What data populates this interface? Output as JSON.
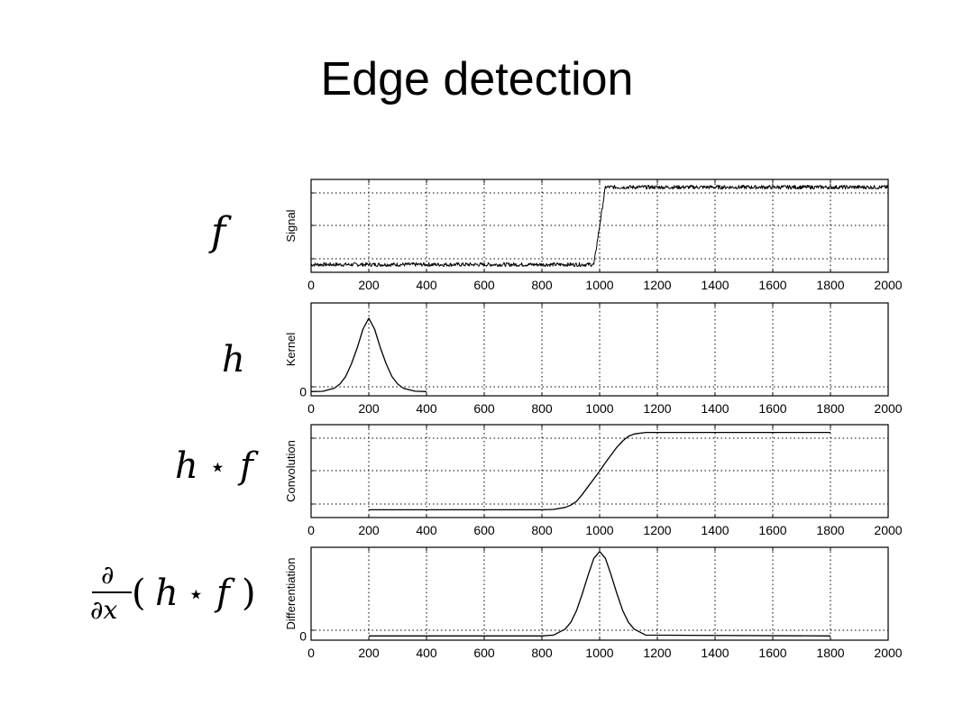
{
  "title": "Edge detection",
  "math_labels": {
    "signal": "f",
    "kernel": "h",
    "conv_h": "h",
    "conv_star": "⋆",
    "conv_f": "f",
    "deriv_partial_top": "∂",
    "deriv_partial_bottom": "∂x",
    "deriv_open": "(",
    "deriv_h": "h",
    "deriv_star": "⋆",
    "deriv_f": "f",
    "deriv_close": ")"
  },
  "chart_data": [
    {
      "type": "line",
      "ylabel": "Signal",
      "xlim": [
        0,
        2000
      ],
      "x_ticks": [
        "0",
        "200",
        "400",
        "600",
        "800",
        "1000",
        "1200",
        "1400",
        "1600",
        "1800",
        "2000"
      ],
      "y_tick_labels": [],
      "ylim": [
        -0.1,
        1.1
      ],
      "grid": true,
      "series": [
        {
          "x": [
            0,
            980,
            1020,
            2000
          ],
          "values": [
            0,
            0,
            1,
            1
          ],
          "noise": true
        }
      ]
    },
    {
      "type": "line",
      "ylabel": "Kernel",
      "xlim": [
        0,
        2000
      ],
      "x_ticks": [
        "0",
        "200",
        "400",
        "600",
        "800",
        "1000",
        "1200",
        "1400",
        "1600",
        "1800",
        "2000"
      ],
      "y_tick_labels": [
        "0"
      ],
      "ylim": [
        -0.05,
        1.05
      ],
      "grid": true,
      "series": [
        {
          "x": [
            0,
            40,
            80,
            100,
            120,
            140,
            160,
            180,
            200,
            220,
            240,
            260,
            280,
            300,
            320,
            360,
            400
          ],
          "values": [
            0,
            0.003,
            0.04,
            0.09,
            0.18,
            0.33,
            0.52,
            0.74,
            0.87,
            0.74,
            0.52,
            0.33,
            0.18,
            0.09,
            0.04,
            0.005,
            0
          ]
        }
      ]
    },
    {
      "type": "line",
      "ylabel": "Convolution",
      "xlim": [
        0,
        2000
      ],
      "x_ticks": [
        "0",
        "200",
        "400",
        "600",
        "800",
        "1000",
        "1200",
        "1400",
        "1600",
        "1800",
        "2000"
      ],
      "y_tick_labels": [],
      "ylim": [
        -0.1,
        1.1
      ],
      "grid": true,
      "series": [
        {
          "x": [
            200,
            800,
            840,
            880,
            900,
            920,
            940,
            960,
            980,
            1000,
            1020,
            1040,
            1060,
            1080,
            1100,
            1120,
            1160,
            1800
          ],
          "values": [
            0,
            0,
            0.005,
            0.03,
            0.06,
            0.11,
            0.2,
            0.3,
            0.4,
            0.5,
            0.61,
            0.71,
            0.81,
            0.89,
            0.95,
            0.98,
            1,
            1
          ]
        }
      ]
    },
    {
      "type": "line",
      "ylabel": "Differentiation",
      "xlim": [
        0,
        2000
      ],
      "x_ticks": [
        "0",
        "200",
        "400",
        "600",
        "800",
        "1000",
        "1200",
        "1400",
        "1600",
        "1800",
        "2000"
      ],
      "y_tick_labels": [
        "0"
      ],
      "ylim": [
        -0.05,
        1.05
      ],
      "grid": true,
      "series": [
        {
          "x": [
            200,
            800,
            840,
            880,
            900,
            920,
            940,
            960,
            980,
            1000,
            1020,
            1040,
            1060,
            1080,
            1100,
            1120,
            1160,
            1800
          ],
          "values": [
            0,
            0,
            0.01,
            0.08,
            0.16,
            0.3,
            0.5,
            0.72,
            0.92,
            1.0,
            0.92,
            0.72,
            0.5,
            0.3,
            0.16,
            0.08,
            0.01,
            0
          ]
        }
      ]
    }
  ]
}
